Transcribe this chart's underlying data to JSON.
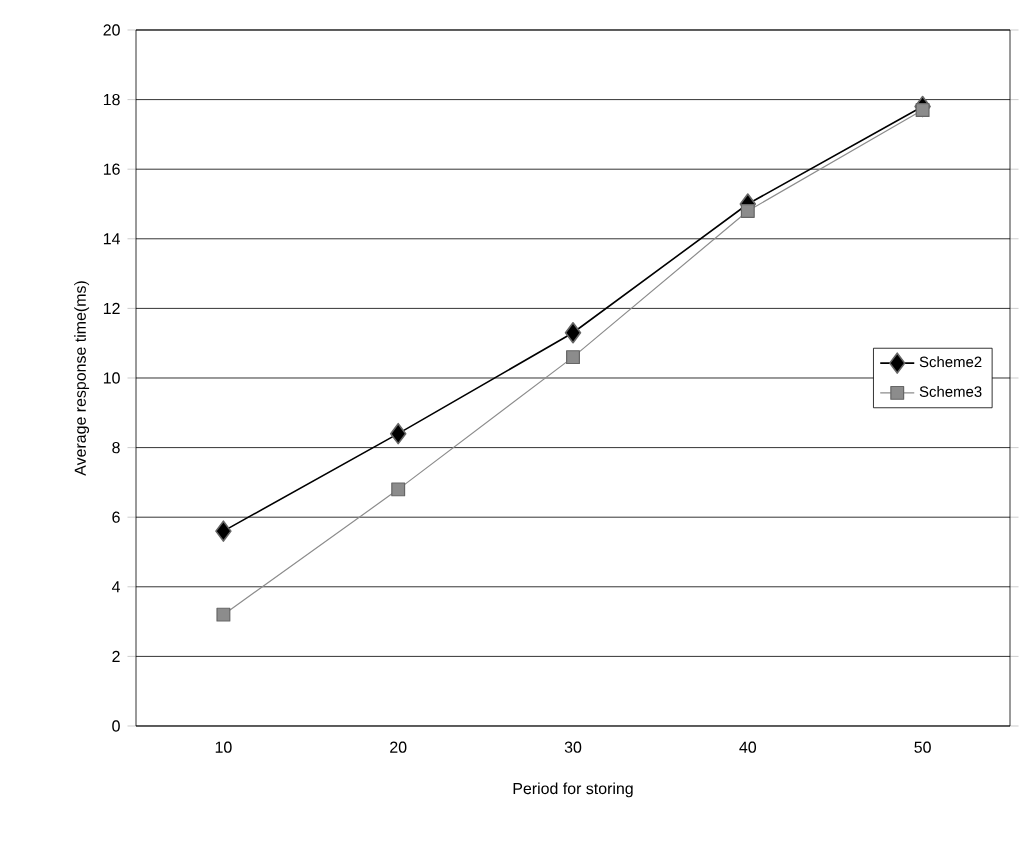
{
  "chart_data": {
    "type": "line",
    "xlabel": "Period for storing",
    "ylabel": "Average response time(ms)",
    "categories": [
      "10",
      "20",
      "30",
      "40",
      "50"
    ],
    "series": [
      {
        "name": "Scheme2",
        "color": "#000000",
        "marker": "diamond",
        "values": [
          5.6,
          8.4,
          11.3,
          15.0,
          17.8
        ]
      },
      {
        "name": "Scheme3",
        "color": "#8c8c8c",
        "marker": "square",
        "values": [
          3.2,
          6.8,
          10.6,
          14.8,
          17.7
        ]
      }
    ],
    "ylim": [
      0,
      20
    ],
    "yticks": [
      0,
      2,
      4,
      6,
      8,
      10,
      12,
      14,
      16,
      18,
      20
    ],
    "grid": "y",
    "legend": "right",
    "line_style": "solid"
  }
}
